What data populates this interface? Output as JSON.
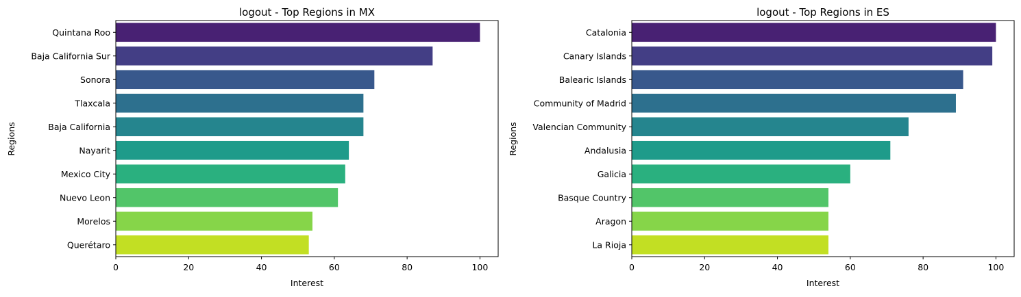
{
  "palette": [
    "#482173",
    "#433e85",
    "#38588c",
    "#2d708e",
    "#25858e",
    "#1e9b8a",
    "#2ab07f",
    "#52c569",
    "#86d549",
    "#c2df23"
  ],
  "chart_data": [
    {
      "type": "bar",
      "orientation": "horizontal",
      "title": "logout - Top Regions in MX",
      "xlabel": "Interest",
      "ylabel": "Regions",
      "xlim": [
        0,
        105
      ],
      "xticks": [
        "0",
        "20",
        "40",
        "60",
        "80",
        "100"
      ],
      "categories": [
        "Quintana Roo",
        "Baja California Sur",
        "Sonora",
        "Tlaxcala",
        "Baja California",
        "Nayarit",
        "Mexico City",
        "Nuevo Leon",
        "Morelos",
        "Querétaro"
      ],
      "values": [
        100,
        87,
        71,
        68,
        68,
        64,
        63,
        61,
        54,
        53
      ]
    },
    {
      "type": "bar",
      "orientation": "horizontal",
      "title": "logout - Top Regions in ES",
      "xlabel": "Interest",
      "ylabel": "Regions",
      "xlim": [
        0,
        105
      ],
      "xticks": [
        "0",
        "20",
        "40",
        "60",
        "80",
        "100"
      ],
      "categories": [
        "Catalonia",
        "Canary Islands",
        "Balearic Islands",
        "Community of Madrid",
        "Valencian Community",
        "Andalusia",
        "Galicia",
        "Basque Country",
        "Aragon",
        "La Rioja"
      ],
      "values": [
        100,
        99,
        91,
        89,
        76,
        71,
        60,
        54,
        54,
        54
      ]
    }
  ]
}
